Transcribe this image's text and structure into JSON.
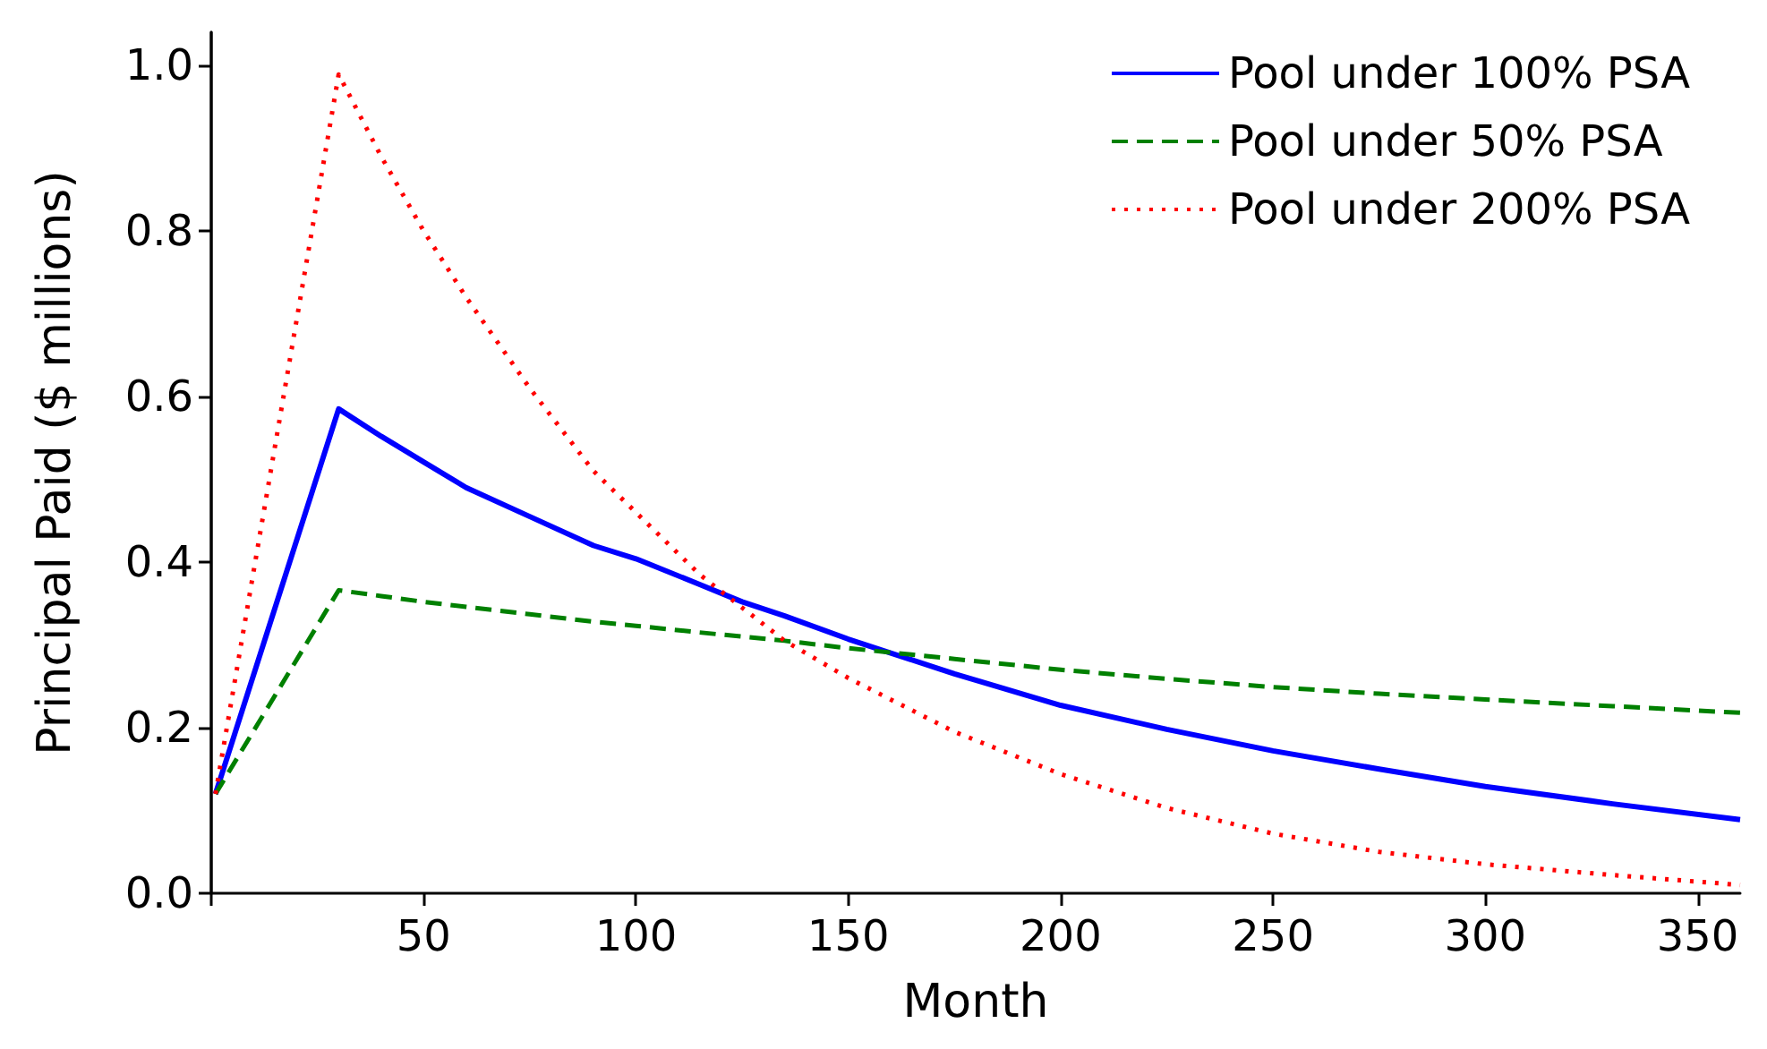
{
  "chart_data": {
    "type": "line",
    "xlabel": "Month",
    "ylabel": "Principal Paid ($ millions)",
    "xlim": [
      0,
      360
    ],
    "ylim": [
      0,
      1.04
    ],
    "xticks": [
      {
        "value": 0,
        "label": null
      },
      50,
      100,
      150,
      200,
      250,
      300,
      350
    ],
    "yticks": [
      {
        "value": 0,
        "label": "0.0"
      },
      {
        "value": 0.2,
        "label": "0.2"
      },
      {
        "value": 0.4,
        "label": "0.4"
      },
      {
        "value": 0.6,
        "label": "0.6"
      },
      {
        "value": 0.8,
        "label": "0.8"
      },
      {
        "value": 1,
        "label": "1.0"
      }
    ],
    "x": [
      1,
      30,
      40,
      50,
      60,
      75,
      90,
      100,
      115,
      125,
      135,
      150,
      175,
      200,
      225,
      250,
      275,
      300,
      330,
      360
    ],
    "series": [
      {
        "name": "Pool under 100% PSA",
        "color": "#0000ff",
        "line_style": "solid",
        "values": [
          0.12,
          0.585,
          0.552,
          0.521,
          0.49,
          0.455,
          0.42,
          0.404,
          0.373,
          0.352,
          0.335,
          0.307,
          0.265,
          0.227,
          0.198,
          0.172,
          0.15,
          0.129,
          0.108,
          0.089
        ]
      },
      {
        "name": "Pool under 50% PSA",
        "color": "#008000",
        "line_style": "dashed",
        "values": [
          0.12,
          0.366,
          0.359,
          0.352,
          0.346,
          0.337,
          0.328,
          0.323,
          0.315,
          0.31,
          0.305,
          0.296,
          0.283,
          0.27,
          0.259,
          0.249,
          0.241,
          0.234,
          0.226,
          0.218
        ]
      },
      {
        "name": "Pool under 200% PSA",
        "color": "#ff0000",
        "line_style": "dotted",
        "values": [
          0.12,
          0.989,
          0.89,
          0.8,
          0.72,
          0.61,
          0.51,
          0.46,
          0.385,
          0.345,
          0.305,
          0.26,
          0.195,
          0.144,
          0.103,
          0.072,
          0.05,
          0.035,
          0.022,
          0.01
        ]
      }
    ],
    "legend": "top right",
    "grid": false,
    "marker": "none"
  }
}
